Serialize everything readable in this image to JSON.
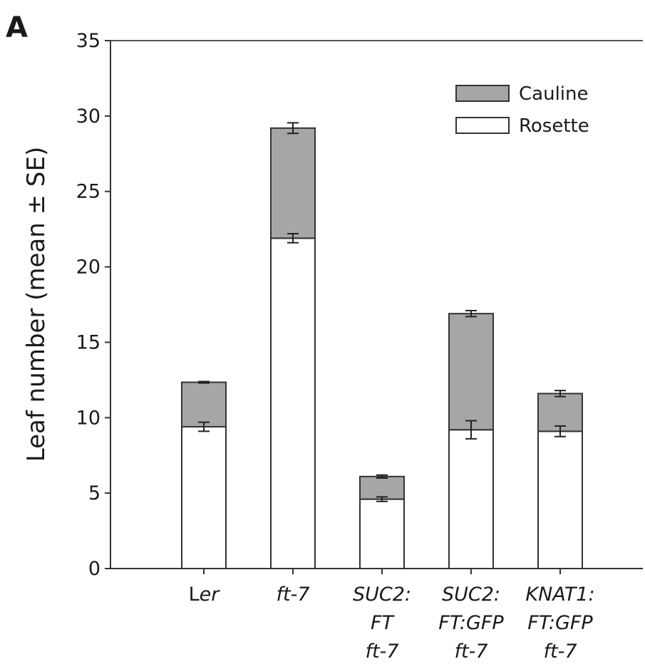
{
  "panel_label": "A",
  "chart_data": {
    "type": "bar",
    "stacked": true,
    "ylabel": "Leaf number (mean ± SE)",
    "xlabel": "",
    "ylim": [
      0,
      35
    ],
    "yticks": [
      0,
      5,
      10,
      15,
      20,
      25,
      30,
      35
    ],
    "grid": false,
    "legend_position": "top-right",
    "categories": [
      {
        "lines": [
          "Ler"
        ],
        "italic_part": "er"
      },
      {
        "lines": [
          "ft-7"
        ]
      },
      {
        "lines": [
          "SUC2:",
          "FT",
          "ft-7"
        ]
      },
      {
        "lines": [
          "SUC2:",
          "FT:GFP",
          "ft-7"
        ]
      },
      {
        "lines": [
          "KNAT1:",
          "FT:GFP",
          "ft-7"
        ]
      }
    ],
    "series": [
      {
        "name": "Rosette",
        "color": "#ffffff",
        "values": [
          9.4,
          21.9,
          4.6,
          9.2,
          9.1
        ],
        "se": [
          0.3,
          0.3,
          0.15,
          0.6,
          0.35
        ]
      },
      {
        "name": "Cauline",
        "color": "#a6a6a6",
        "values": [
          2.95,
          7.3,
          1.5,
          7.7,
          2.5
        ],
        "se": [
          0.05,
          0.35,
          0.1,
          0.2,
          0.2
        ]
      }
    ],
    "legend_order": [
      "Cauline",
      "Rosette"
    ]
  }
}
